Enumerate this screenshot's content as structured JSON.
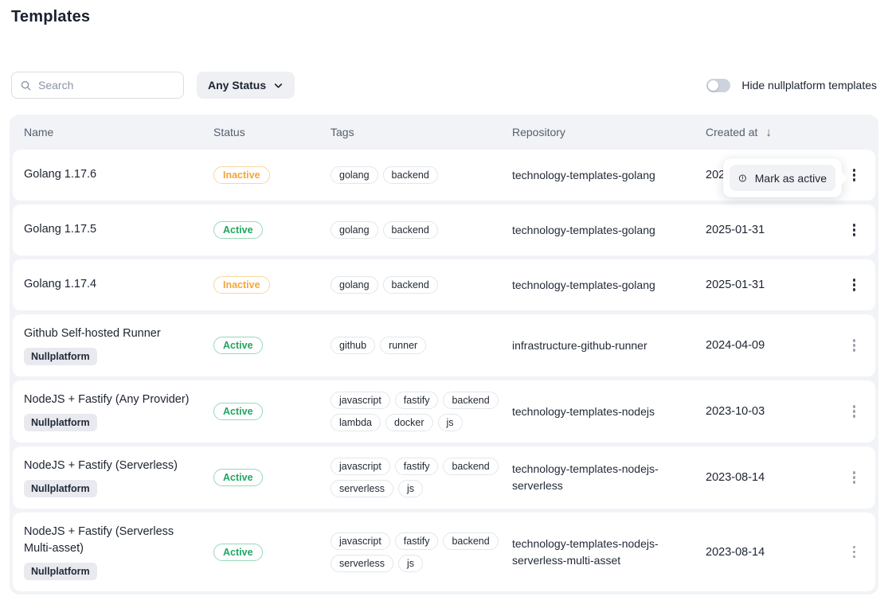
{
  "page": {
    "title": "Templates"
  },
  "toolbar": {
    "search_placeholder": "Search",
    "status_filter_label": "Any Status",
    "toggle_label": "Hide nullplatform templates",
    "toggle_on": false
  },
  "table": {
    "columns": [
      "Name",
      "Status",
      "Tags",
      "Repository",
      "Created at"
    ],
    "sort": {
      "column": "Created at",
      "direction": "desc",
      "icon": "arrow-down-icon"
    },
    "nullplatform_badge_label": "Nullplatform",
    "rows": [
      {
        "name": "Golang 1.17.6",
        "nullplatform": false,
        "status": "Inactive",
        "tags": [
          "golang",
          "backend"
        ],
        "repository": "technology-templates-golang",
        "created_at": "2025",
        "menu_open": true
      },
      {
        "name": "Golang 1.17.5",
        "nullplatform": false,
        "status": "Active",
        "tags": [
          "golang",
          "backend"
        ],
        "repository": "technology-templates-golang",
        "created_at": "2025-01-31"
      },
      {
        "name": "Golang 1.17.4",
        "nullplatform": false,
        "status": "Inactive",
        "tags": [
          "golang",
          "backend"
        ],
        "repository": "technology-templates-golang",
        "created_at": "2025-01-31"
      },
      {
        "name": "Github Self-hosted Runner",
        "nullplatform": true,
        "status": "Active",
        "tags": [
          "github",
          "runner"
        ],
        "repository": "infrastructure-github-runner",
        "created_at": "2024-04-09"
      },
      {
        "name": "NodeJS + Fastify (Any Provider)",
        "nullplatform": true,
        "status": "Active",
        "tags": [
          "javascript",
          "fastify",
          "backend",
          "lambda",
          "docker",
          "js"
        ],
        "repository": "technology-templates-nodejs",
        "created_at": "2023-10-03"
      },
      {
        "name": "NodeJS + Fastify (Serverless)",
        "nullplatform": true,
        "status": "Active",
        "tags": [
          "javascript",
          "fastify",
          "backend",
          "serverless",
          "js"
        ],
        "repository": "technology-templates-nodejs-serverless",
        "created_at": "2023-08-14"
      },
      {
        "name": "NodeJS + Fastify (Serverless Multi-asset)",
        "nullplatform": true,
        "status": "Active",
        "tags": [
          "javascript",
          "fastify",
          "backend",
          "serverless",
          "js"
        ],
        "repository": "technology-templates-nodejs-serverless-multi-asset",
        "created_at": "2023-08-14"
      }
    ]
  },
  "context_menu": {
    "items": [
      {
        "label": "Mark as active",
        "icon": "alert-circle-icon"
      }
    ]
  },
  "colors": {
    "status_active": "#22a564",
    "status_inactive": "#f4a63a",
    "header_text": "#555f6e",
    "table_frame": "#f1f3f6",
    "nullplatform_badge_bg": "#e8eaef"
  }
}
